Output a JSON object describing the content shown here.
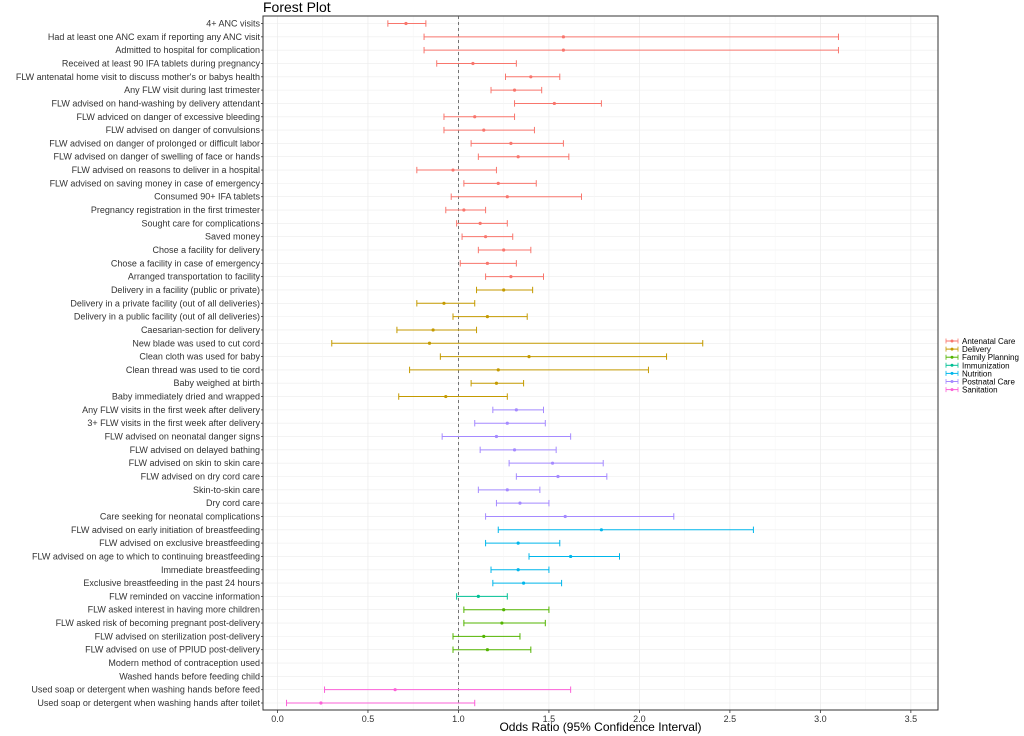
{
  "chart_data": {
    "type": "forest",
    "title": "Forest Plot",
    "xlabel": "Odds Ratio (95% Confidence Interval)",
    "xlim": [
      -0.08,
      3.65
    ],
    "xticks": [
      0.0,
      0.5,
      1.0,
      1.5,
      2.0,
      2.5,
      3.0,
      3.5
    ],
    "xtick_labels": [
      "0.0",
      "0.5",
      "1.0",
      "1.5",
      "2.0",
      "2.5",
      "3.0",
      "3.5"
    ],
    "reference_line": 1.0,
    "groups": [
      {
        "name": "Antenatal Care",
        "color": "#F8766D"
      },
      {
        "name": "Delivery",
        "color": "#C49A00"
      },
      {
        "name": "Family Planning",
        "color": "#53B400"
      },
      {
        "name": "Immunization",
        "color": "#00C094"
      },
      {
        "name": "Nutrition",
        "color": "#00B6EB"
      },
      {
        "name": "Postnatal Care",
        "color": "#A58AFF"
      },
      {
        "name": "Sanitation",
        "color": "#FB61D7"
      }
    ],
    "rows": [
      {
        "label": "4+ ANC visits",
        "group": "Antenatal Care",
        "or": 0.71,
        "lo": 0.61,
        "hi": 0.82
      },
      {
        "label": "Had at least one ANC exam if reporting any ANC visit",
        "group": "Antenatal Care",
        "or": 1.58,
        "lo": 0.81,
        "hi": 3.1
      },
      {
        "label": "Admitted to hospital for complication",
        "group": "Antenatal Care",
        "or": 1.58,
        "lo": 0.81,
        "hi": 3.1
      },
      {
        "label": "Received at least 90 IFA tablets during pregnancy",
        "group": "Antenatal Care",
        "or": 1.08,
        "lo": 0.88,
        "hi": 1.32
      },
      {
        "label": "FLW antenatal home visit to discuss mother's or babys health",
        "group": "Antenatal Care",
        "or": 1.4,
        "lo": 1.26,
        "hi": 1.56
      },
      {
        "label": "Any FLW visit during last trimester",
        "group": "Antenatal Care",
        "or": 1.31,
        "lo": 1.18,
        "hi": 1.46
      },
      {
        "label": "FLW advised on hand-washing by delivery attendant",
        "group": "Antenatal Care",
        "or": 1.53,
        "lo": 1.31,
        "hi": 1.79
      },
      {
        "label": "FLW adviced on danger of excessive bleeding",
        "group": "Antenatal Care",
        "or": 1.09,
        "lo": 0.92,
        "hi": 1.31
      },
      {
        "label": "FLW advised on danger of convulsions",
        "group": "Antenatal Care",
        "or": 1.14,
        "lo": 0.92,
        "hi": 1.42
      },
      {
        "label": "FLW advised on danger of prolonged or difficult labor",
        "group": "Antenatal Care",
        "or": 1.29,
        "lo": 1.07,
        "hi": 1.58
      },
      {
        "label": "FLW advised on danger of swelling of face or hands",
        "group": "Antenatal Care",
        "or": 1.33,
        "lo": 1.11,
        "hi": 1.61
      },
      {
        "label": "FLW advised on reasons to deliver in a hospital",
        "group": "Antenatal Care",
        "or": 0.97,
        "lo": 0.77,
        "hi": 1.21
      },
      {
        "label": "FLW advised on saving money in case of emergency",
        "group": "Antenatal Care",
        "or": 1.22,
        "lo": 1.03,
        "hi": 1.43
      },
      {
        "label": "Consumed 90+ IFA tablets",
        "group": "Antenatal Care",
        "or": 1.27,
        "lo": 0.96,
        "hi": 1.68
      },
      {
        "label": "Pregnancy registration in the first trimester",
        "group": "Antenatal Care",
        "or": 1.03,
        "lo": 0.93,
        "hi": 1.15
      },
      {
        "label": "Sought care for complications",
        "group": "Antenatal Care",
        "or": 1.12,
        "lo": 0.99,
        "hi": 1.27
      },
      {
        "label": "Saved money",
        "group": "Antenatal Care",
        "or": 1.15,
        "lo": 1.02,
        "hi": 1.3
      },
      {
        "label": "Chose a facility for delivery",
        "group": "Antenatal Care",
        "or": 1.25,
        "lo": 1.11,
        "hi": 1.4
      },
      {
        "label": "Chose a facility in case of emergency",
        "group": "Antenatal Care",
        "or": 1.16,
        "lo": 1.01,
        "hi": 1.32
      },
      {
        "label": "Arranged transportation to facility",
        "group": "Antenatal Care",
        "or": 1.29,
        "lo": 1.15,
        "hi": 1.47
      },
      {
        "label": "Delivery in a facility (public or private)",
        "group": "Delivery",
        "or": 1.25,
        "lo": 1.1,
        "hi": 1.41
      },
      {
        "label": "Delivery in a private facility (out of all deliveries)",
        "group": "Delivery",
        "or": 0.92,
        "lo": 0.77,
        "hi": 1.09
      },
      {
        "label": "Delivery in a public facility (out of all deliveries)",
        "group": "Delivery",
        "or": 1.16,
        "lo": 0.97,
        "hi": 1.38
      },
      {
        "label": "Caesarian-section for delivery",
        "group": "Delivery",
        "or": 0.86,
        "lo": 0.66,
        "hi": 1.1
      },
      {
        "label": "New blade was used to cut cord",
        "group": "Delivery",
        "or": 0.84,
        "lo": 0.3,
        "hi": 2.35
      },
      {
        "label": "Clean cloth was used for baby",
        "group": "Delivery",
        "or": 1.39,
        "lo": 0.9,
        "hi": 2.15
      },
      {
        "label": "Clean thread was used to tie cord",
        "group": "Delivery",
        "or": 1.22,
        "lo": 0.73,
        "hi": 2.05
      },
      {
        "label": "Baby weighed at birth",
        "group": "Delivery",
        "or": 1.21,
        "lo": 1.07,
        "hi": 1.36
      },
      {
        "label": "Baby immediately dried and wrapped",
        "group": "Delivery",
        "or": 0.93,
        "lo": 0.67,
        "hi": 1.27
      },
      {
        "label": "Any FLW visits in the first week after delivery",
        "group": "Postnatal Care",
        "or": 1.32,
        "lo": 1.19,
        "hi": 1.47
      },
      {
        "label": "3+ FLW visits in the first week after delivery",
        "group": "Postnatal Care",
        "or": 1.27,
        "lo": 1.09,
        "hi": 1.48
      },
      {
        "label": "FLW advised on neonatal danger signs",
        "group": "Postnatal Care",
        "or": 1.21,
        "lo": 0.91,
        "hi": 1.62
      },
      {
        "label": "FLW advised on delayed bathing",
        "group": "Postnatal Care",
        "or": 1.31,
        "lo": 1.12,
        "hi": 1.54
      },
      {
        "label": "FLW advised on skin to skin care",
        "group": "Postnatal Care",
        "or": 1.52,
        "lo": 1.28,
        "hi": 1.8
      },
      {
        "label": "FLW advised on dry cord care",
        "group": "Postnatal Care",
        "or": 1.55,
        "lo": 1.32,
        "hi": 1.82
      },
      {
        "label": "Skin-to-skin care",
        "group": "Postnatal Care",
        "or": 1.27,
        "lo": 1.11,
        "hi": 1.45
      },
      {
        "label": "Dry cord care",
        "group": "Postnatal Care",
        "or": 1.34,
        "lo": 1.21,
        "hi": 1.5
      },
      {
        "label": "Care seeking for neonatal complications",
        "group": "Postnatal Care",
        "or": 1.59,
        "lo": 1.15,
        "hi": 2.19
      },
      {
        "label": "FLW advised on early initiation of breastfeeding",
        "group": "Nutrition",
        "or": 1.79,
        "lo": 1.22,
        "hi": 2.63
      },
      {
        "label": "FLW advised on exclusive breastfeeding",
        "group": "Nutrition",
        "or": 1.33,
        "lo": 1.15,
        "hi": 1.56
      },
      {
        "label": "FLW advised on age to which to continuing breastfeeding",
        "group": "Nutrition",
        "or": 1.62,
        "lo": 1.39,
        "hi": 1.89
      },
      {
        "label": "Immediate breastfeeding",
        "group": "Nutrition",
        "or": 1.33,
        "lo": 1.18,
        "hi": 1.5
      },
      {
        "label": "Exclusive breastfeeding in the past 24 hours",
        "group": "Nutrition",
        "or": 1.36,
        "lo": 1.19,
        "hi": 1.57
      },
      {
        "label": "FLW reminded on vaccine information",
        "group": "Immunization",
        "or": 1.11,
        "lo": 0.99,
        "hi": 1.27
      },
      {
        "label": "FLW asked interest in having more children",
        "group": "Family Planning",
        "or": 1.25,
        "lo": 1.03,
        "hi": 1.5
      },
      {
        "label": "FLW asked risk of becoming pregnant post-delivery",
        "group": "Family Planning",
        "or": 1.24,
        "lo": 1.03,
        "hi": 1.48
      },
      {
        "label": "FLW advised on sterilization post-delivery",
        "group": "Family Planning",
        "or": 1.14,
        "lo": 0.97,
        "hi": 1.34
      },
      {
        "label": "FLW advised on use of PPIUD post-delivery",
        "group": "Family Planning",
        "or": 1.16,
        "lo": 0.97,
        "hi": 1.4
      },
      {
        "label": "Modern method of contraception used",
        "group": "Family Planning",
        "or": null,
        "lo": null,
        "hi": null
      },
      {
        "label": "Washed hands before feeding child",
        "group": "Sanitation",
        "or": null,
        "lo": null,
        "hi": null
      },
      {
        "label": "Used soap or detergent when washing hands before feed",
        "group": "Sanitation",
        "or": 0.65,
        "lo": 0.26,
        "hi": 1.62
      },
      {
        "label": "Used soap or detergent when washing hands after toilet",
        "group": "Sanitation",
        "or": 0.24,
        "lo": 0.05,
        "hi": 1.09
      }
    ]
  }
}
